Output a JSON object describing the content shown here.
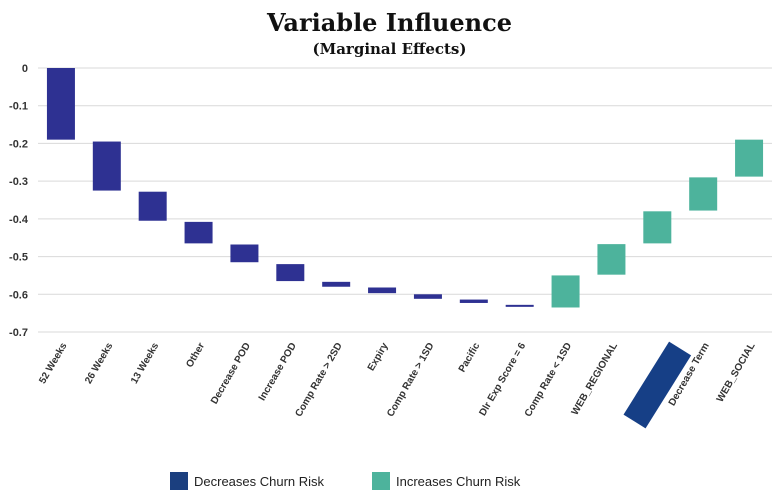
{
  "title": "Variable Influence",
  "subtitle": "(Marginal Effects)",
  "colors": {
    "decrease": "#2e3192",
    "decrease_legend": "#1b3f7f",
    "increase": "#4db39c",
    "highlight": "#163f86",
    "grid": "#d9d9d9"
  },
  "legend": {
    "decrease_label": "Decreases Churn Risk",
    "increase_label": "Increases Churn Risk"
  },
  "chart_data": {
    "type": "bar",
    "subtype": "floating-waterfall",
    "title": "Variable Influence",
    "subtitle": "(Marginal Effects)",
    "xlabel": "",
    "ylabel": "",
    "ylim": [
      -0.7,
      0
    ],
    "yticks": [
      0,
      -0.1,
      -0.2,
      -0.3,
      -0.4,
      -0.5,
      -0.6,
      -0.7
    ],
    "grid": true,
    "legend_position": "bottom",
    "categories": [
      "52 Weeks",
      "26 Weeks",
      "13 Weeks",
      "Other",
      "Decrease POD",
      "Increase POD",
      "Comp Rate > 2SD",
      "Expiry",
      "Comp Rate > 1SD",
      "Pacific",
      "Dlr Exp Score = 6",
      "Comp Rate < 1SD",
      "WEB_REGIONAL",
      "",
      "Decrease Term",
      "WEB_SOCIAL"
    ],
    "bars": [
      {
        "start": 0,
        "end": -0.19,
        "effect": "decrease"
      },
      {
        "start": -0.195,
        "end": -0.325,
        "effect": "decrease"
      },
      {
        "start": -0.328,
        "end": -0.405,
        "effect": "decrease"
      },
      {
        "start": -0.408,
        "end": -0.465,
        "effect": "decrease"
      },
      {
        "start": -0.468,
        "end": -0.515,
        "effect": "decrease"
      },
      {
        "start": -0.52,
        "end": -0.565,
        "effect": "decrease"
      },
      {
        "start": -0.567,
        "end": -0.58,
        "effect": "decrease"
      },
      {
        "start": -0.582,
        "end": -0.597,
        "effect": "decrease"
      },
      {
        "start": -0.6,
        "end": -0.612,
        "effect": "decrease"
      },
      {
        "start": -0.614,
        "end": -0.623,
        "effect": "decrease"
      },
      {
        "start": -0.628,
        "end": -0.632,
        "effect": "decrease"
      },
      {
        "start": -0.635,
        "end": -0.55,
        "effect": "increase"
      },
      {
        "start": -0.548,
        "end": -0.467,
        "effect": "increase"
      },
      {
        "start": -0.465,
        "end": -0.38,
        "effect": "increase"
      },
      {
        "start": -0.378,
        "end": -0.29,
        "effect": "increase"
      },
      {
        "start": -0.288,
        "end": -0.19,
        "effect": "increase"
      }
    ]
  }
}
